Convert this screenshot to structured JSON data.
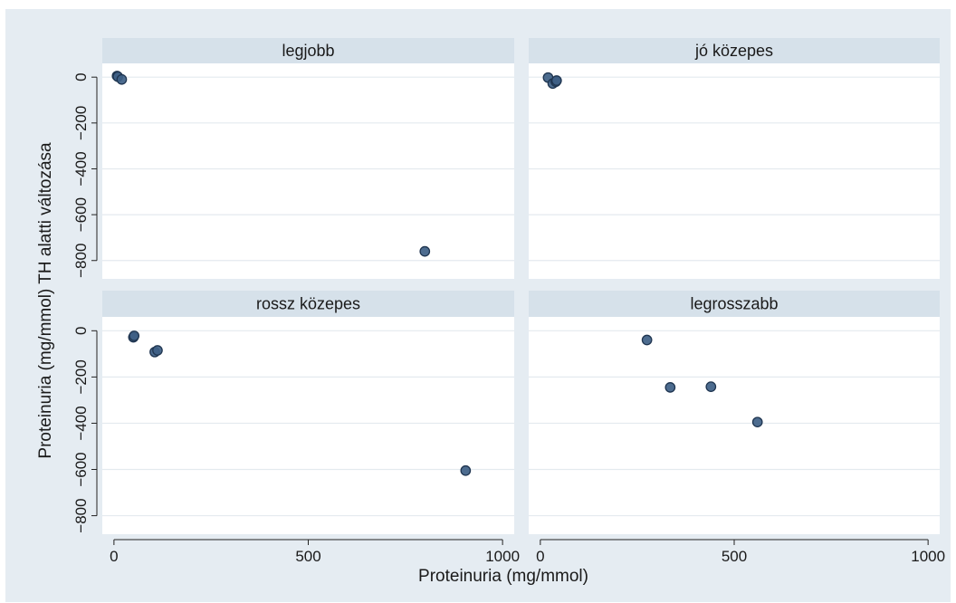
{
  "chart_data": {
    "type": "scatter",
    "layout": "2x2 facets",
    "xlabel": "Proteinuria (mg/mmol)",
    "ylabel": "Proteinuria (mg/mmol) TH alatti változása",
    "xlim": [
      -30,
      1030
    ],
    "ylim": [
      -880,
      60
    ],
    "x_ticks": [
      0,
      500,
      1000
    ],
    "y_ticks": [
      0,
      -200,
      -400,
      -600,
      -800
    ],
    "grid": true,
    "marker_color": "#3e5f86",
    "panel_header_color": "#e5ecf2",
    "plot_region_color": "#e5ecf2",
    "panels": [
      {
        "title": "legjobb",
        "points": [
          [
            8,
            5
          ],
          [
            10,
            2
          ],
          [
            20,
            -10
          ]
        ]
      },
      {
        "title": "jó közepes",
        "points": [
          [
            20,
            -2
          ],
          [
            32,
            -28
          ],
          [
            40,
            -20
          ],
          [
            42,
            -15
          ]
        ]
      },
      {
        "title": "rossz közepes",
        "points": [
          [
            50,
            -28
          ],
          [
            52,
            -22
          ],
          [
            105,
            -92
          ],
          [
            112,
            -85
          ],
          [
            905,
            -605
          ]
        ]
      },
      {
        "title": "legrosszabb",
        "points": [
          [
            275,
            -40
          ],
          [
            335,
            -245
          ],
          [
            440,
            -242
          ],
          [
            560,
            -395
          ]
        ]
      }
    ]
  },
  "extra_points": {
    "legjobb_outlier": [
      800,
      -760
    ]
  }
}
